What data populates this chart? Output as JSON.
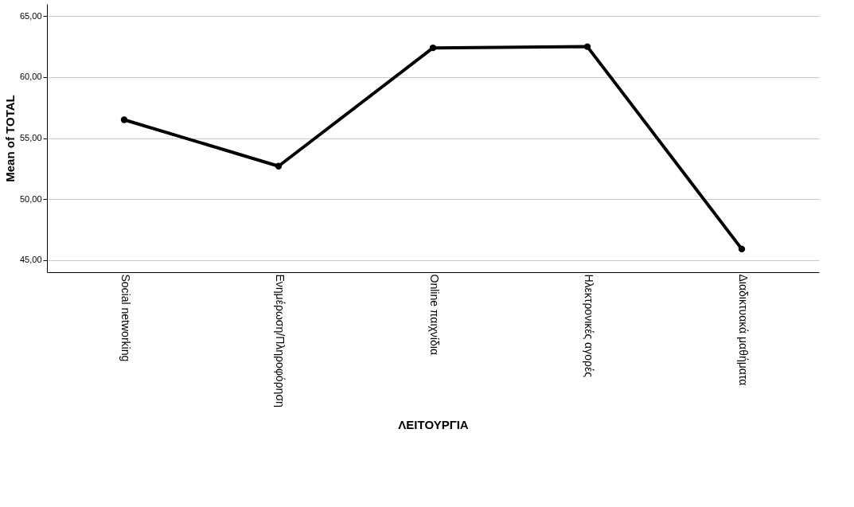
{
  "chart_data": {
    "type": "line",
    "xlabel": "ΛΕΙΤΟΥΡΓΙΑ",
    "ylabel": "Mean of TOTAL",
    "categories": [
      "Social networking",
      "Ενημέρωση/Πληροφόρηση",
      "Online παιχνίδια",
      "Ηλεκτρονικές αγορές",
      "Διαδικτυακά μαθήματα"
    ],
    "series": [
      {
        "color": "#000000",
        "values": [
          56.5,
          52.7,
          62.4,
          62.5,
          45.9
        ]
      }
    ],
    "ylim": [
      44,
      66
    ],
    "yticks": [
      {
        "value": 45,
        "label": "45,00"
      },
      {
        "value": 50,
        "label": "50,00"
      },
      {
        "value": 55,
        "label": "55,00"
      },
      {
        "value": 60,
        "label": "60,00"
      },
      {
        "value": 65,
        "label": "65,00"
      }
    ],
    "grid": "y",
    "marker": "circle",
    "line_style": "solid"
  }
}
